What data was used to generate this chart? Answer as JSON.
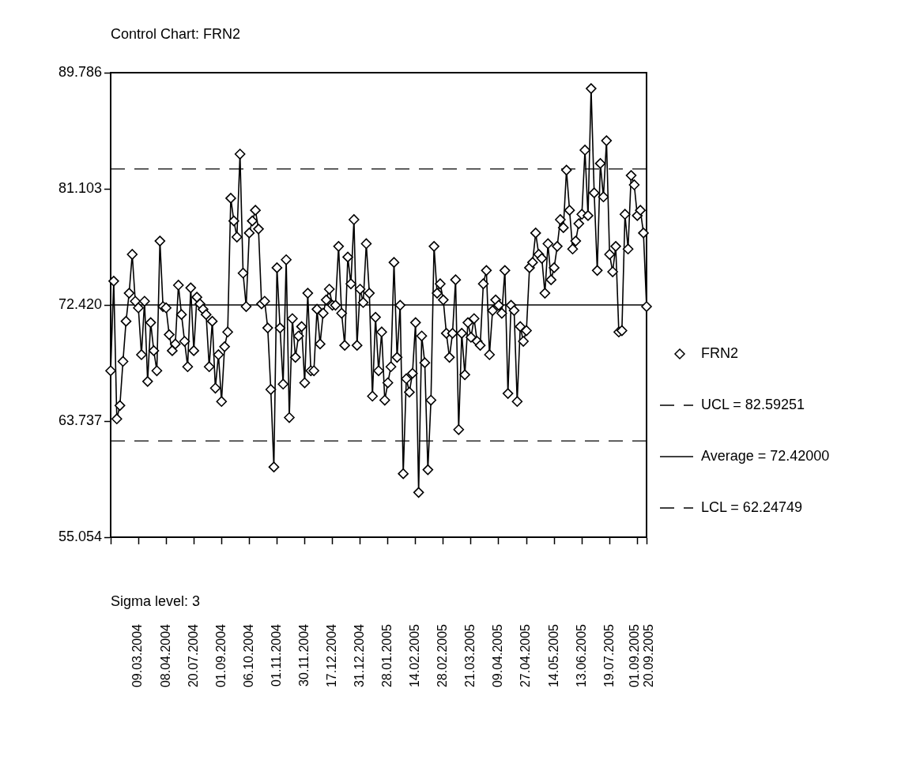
{
  "chart_data": {
    "type": "line",
    "title": "Control Chart: FRN2",
    "categories": [
      null,
      null,
      null,
      null,
      null,
      null,
      null,
      null,
      null,
      "09.03.2004",
      null,
      null,
      null,
      null,
      null,
      null,
      null,
      null,
      "08.04.2004",
      null,
      null,
      null,
      null,
      null,
      null,
      null,
      null,
      "20.07.2004",
      null,
      null,
      null,
      null,
      null,
      null,
      null,
      null,
      "01.09.2004",
      null,
      null,
      null,
      null,
      null,
      null,
      null,
      null,
      "06.10.2004",
      null,
      null,
      null,
      null,
      null,
      null,
      null,
      null,
      "01.11.2004",
      null,
      null,
      null,
      null,
      null,
      null,
      null,
      null,
      "30.11.2004",
      null,
      null,
      null,
      null,
      null,
      null,
      null,
      null,
      "17.12.2004",
      null,
      null,
      null,
      null,
      null,
      null,
      null,
      null,
      "31.12.2004",
      null,
      null,
      null,
      null,
      null,
      null,
      null,
      null,
      "28.01.2005",
      null,
      null,
      null,
      null,
      null,
      null,
      null,
      null,
      "14.02.2005",
      null,
      null,
      null,
      null,
      null,
      null,
      null,
      null,
      "28.02.2005",
      null,
      null,
      null,
      null,
      null,
      null,
      null,
      null,
      "21.03.2005",
      null,
      null,
      null,
      null,
      null,
      null,
      null,
      null,
      "09.04.2005",
      null,
      null,
      null,
      null,
      null,
      null,
      null,
      null,
      "27.04.2005",
      null,
      null,
      null,
      null,
      null,
      null,
      null,
      null,
      "14.05.2005",
      null,
      null,
      null,
      null,
      null,
      null,
      null,
      null,
      "13.06.2005",
      null,
      null,
      null,
      null,
      null,
      null,
      null,
      null,
      "19.07.2005",
      null,
      null,
      null,
      null,
      null,
      null,
      null,
      null,
      "01.09.2005",
      null,
      null,
      "20.09.2005"
    ],
    "series": [
      {
        "name": "FRN2",
        "color": "#000000",
        "values": [
          67.5,
          74.2,
          63.9,
          64.9,
          68.2,
          71.2,
          73.3,
          76.2,
          72.7,
          72.2,
          68.7,
          72.7,
          66.7,
          71.1,
          69.0,
          67.5,
          77.2,
          72.3,
          72.2,
          70.2,
          69.0,
          69.5,
          73.9,
          71.7,
          69.7,
          67.8,
          73.7,
          69.0,
          73.0,
          72.5,
          72.1,
          71.7,
          67.8,
          71.2,
          66.2,
          68.7,
          65.2,
          69.3,
          70.4,
          80.4,
          78.7,
          77.5,
          83.7,
          74.8,
          72.3,
          77.8,
          78.7,
          79.5,
          78.1,
          72.5,
          72.7,
          70.7,
          66.1,
          60.3,
          75.2,
          70.7,
          66.5,
          75.8,
          64.0,
          71.4,
          68.5,
          70.1,
          70.8,
          66.6,
          73.3,
          67.5,
          67.5,
          72.1,
          69.5,
          71.8,
          72.8,
          73.6,
          72.4,
          72.4,
          76.8,
          71.8,
          69.4,
          76.0,
          74.0,
          78.8,
          69.4,
          73.6,
          72.6,
          77.0,
          73.3,
          65.6,
          71.5,
          67.5,
          70.4,
          65.3,
          66.6,
          67.8,
          75.6,
          68.5,
          72.4,
          59.8,
          66.9,
          65.9,
          67.3,
          71.1,
          58.4,
          70.1,
          68.1,
          60.1,
          65.3,
          76.8,
          73.3,
          74.0,
          72.8,
          70.3,
          68.5,
          70.3,
          74.3,
          63.1,
          70.3,
          67.2,
          71.1,
          70.0,
          71.4,
          69.7,
          69.4,
          74.0,
          75.0,
          68.7,
          72.0,
          72.8,
          72.4,
          71.8,
          75.0,
          65.8,
          72.4,
          72.0,
          65.2,
          70.8,
          69.7,
          70.5,
          75.2,
          75.6,
          77.8,
          76.2,
          75.9,
          73.3,
          77.0,
          74.3,
          75.2,
          76.8,
          78.8,
          78.2,
          82.5,
          79.5,
          76.6,
          77.2,
          78.5,
          79.2,
          84.0,
          79.1,
          88.6,
          80.8,
          75.0,
          83.0,
          80.5,
          84.7,
          76.2,
          74.9,
          76.8,
          70.4,
          70.5,
          79.2,
          76.6,
          82.1,
          81.4,
          79.1,
          79.5,
          77.8,
          72.3
        ]
      }
    ],
    "ylim": [
      55.054,
      89.786
    ],
    "yticks": [
      55.054,
      63.737,
      {
        "value": 72.42,
        "label": "72.420"
      },
      81.103,
      89.786
    ],
    "ref_lines": [
      {
        "axis": "y",
        "value": 82.59251,
        "label": "UCL = 82.59251",
        "line_style": "dashed",
        "color": "#000000"
      },
      {
        "axis": "y",
        "value": 72.42,
        "label": "Average = 72.42000",
        "line_style": "solid",
        "color": "#000000"
      },
      {
        "axis": "y",
        "value": 62.24749,
        "label": "LCL = 62.24749",
        "line_style": "dashed",
        "color": "#000000"
      }
    ],
    "legend": "right",
    "marker": "diamond",
    "line_style": "solid",
    "annotations": [
      "Sigma level: 3"
    ]
  }
}
